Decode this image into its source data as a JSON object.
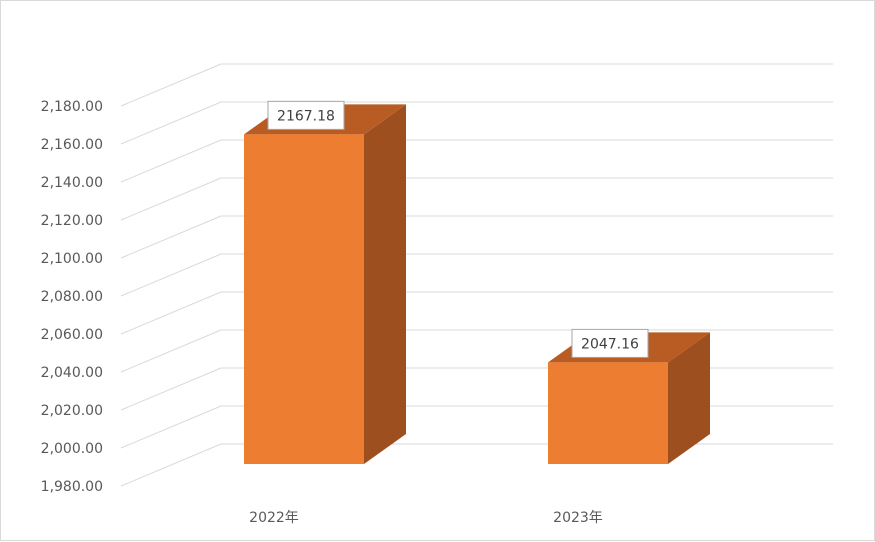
{
  "chart_data": {
    "type": "bar",
    "categories": [
      "2022年",
      "2023年"
    ],
    "values": [
      2167.18,
      2047.16
    ],
    "data_labels": [
      "2167.18",
      "2047.16"
    ],
    "title": "",
    "xlabel": "",
    "ylabel": "",
    "ylim": [
      1980,
      2180
    ],
    "yticks": [
      1980,
      2000,
      2020,
      2040,
      2060,
      2080,
      2100,
      2120,
      2140,
      2160,
      2180
    ],
    "ytick_labels": [
      "1,980.00",
      "2,000.00",
      "2,020.00",
      "2,040.00",
      "2,060.00",
      "2,080.00",
      "2,100.00",
      "2,120.00",
      "2,140.00",
      "2,160.00",
      "2,180.00"
    ],
    "grid": true,
    "legend": "none",
    "style": "3d",
    "colors": {
      "bar_front": "#ed7d31",
      "bar_side": "#9e4f1f",
      "bar_top": "#b85c24",
      "grid": "#d9d9d9",
      "text": "#595959"
    }
  }
}
